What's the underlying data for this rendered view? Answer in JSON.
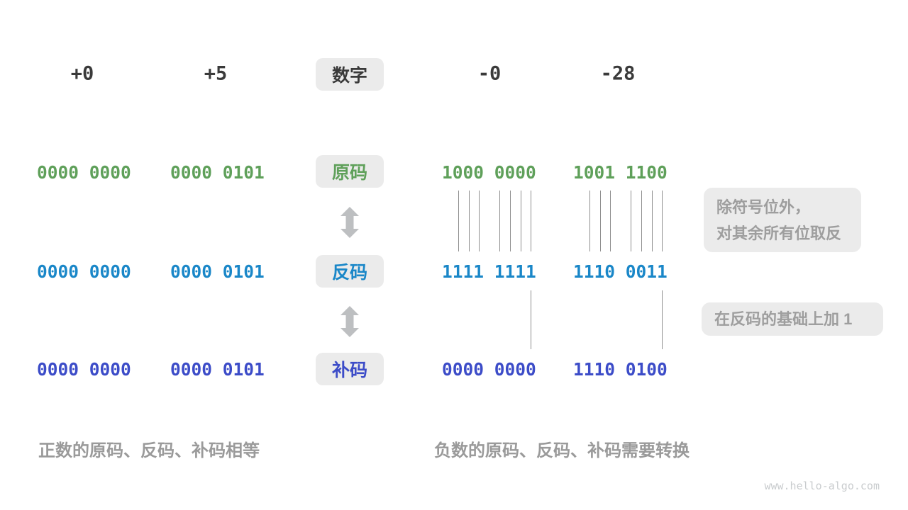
{
  "diagram": {
    "headers": {
      "center_label": "数字",
      "columns": [
        "+0",
        "+5",
        "-0",
        "-28"
      ]
    },
    "rows": [
      {
        "label": "原码",
        "values": [
          "0000 0000",
          "0000 0101",
          "1000 0000",
          "1001 1100"
        ]
      },
      {
        "label": "反码",
        "values": [
          "0000 0000",
          "0000 0101",
          "1111 1111",
          "1110 0011"
        ]
      },
      {
        "label": "补码",
        "values": [
          "0000 0000",
          "0000 0101",
          "0000 0000",
          "1110 0100"
        ]
      }
    ],
    "annotations": {
      "invert_line1": "除符号位外，",
      "invert_line2": "对其余所有位取反",
      "add_one": "在反码的基础上加 1"
    },
    "captions": {
      "positive": "正数的原码、反码、补码相等",
      "negative": "负数的原码、反码、补码需要转换"
    },
    "watermark": "www.hello-algo.com"
  },
  "colors": {
    "sign_magnitude": "#5FA05A",
    "ones_complement": "#1A87C8",
    "twos_complement": "#3C4CC8",
    "chip_bg": "#EBEBEB",
    "dark_text": "#3A3A3A",
    "gray_text": "#9A9A9A",
    "annotation_text": "#9E9E9E",
    "line": "#8E8E8E",
    "arrow": "#BDBFC1",
    "watermark": "#C9CCCE"
  }
}
